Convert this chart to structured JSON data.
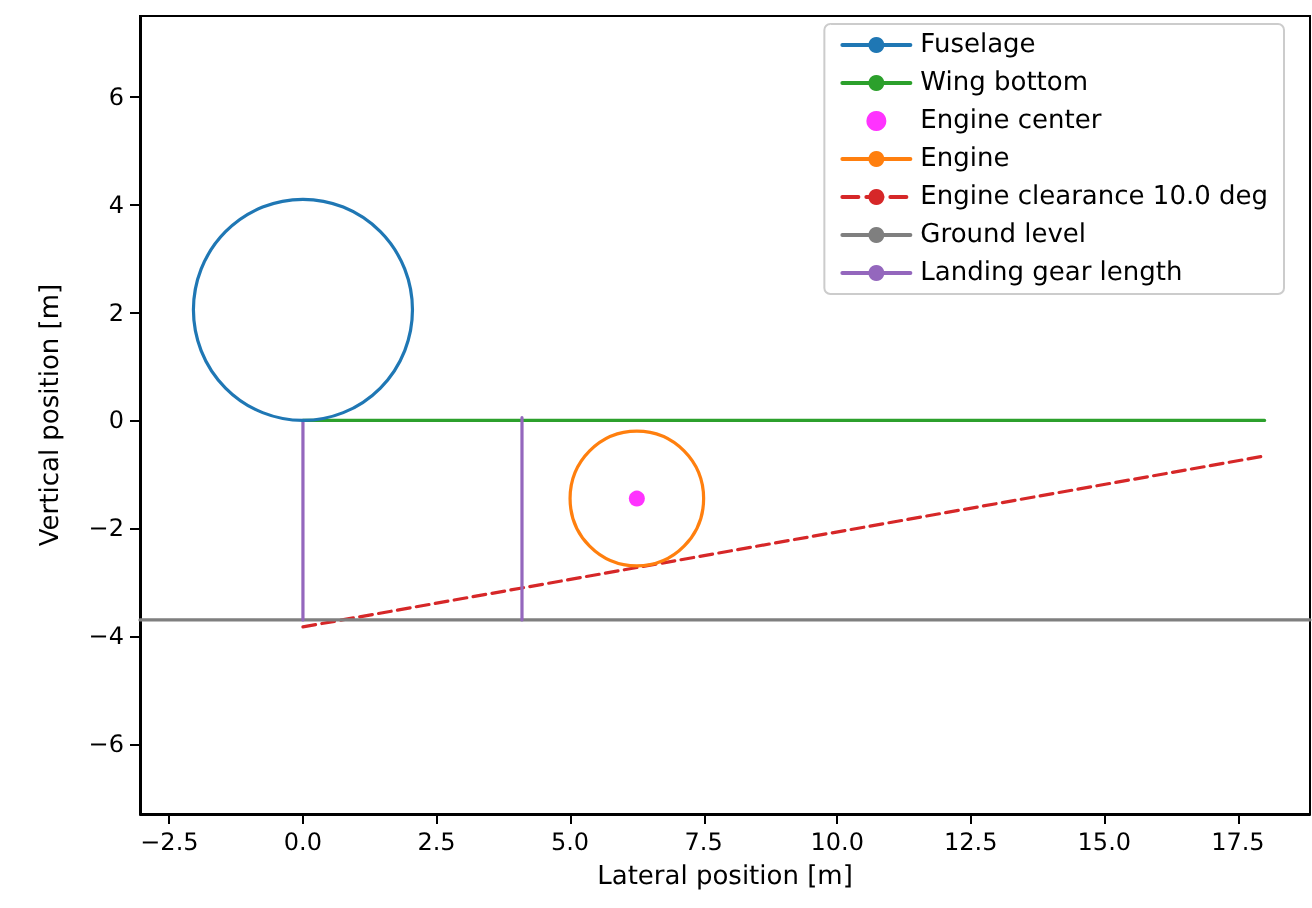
{
  "chart_data": {
    "type": "line",
    "xlabel": "Lateral position [m]",
    "ylabel": "Vertical position [m]",
    "xlim": [
      -3.05,
      18.85
    ],
    "ylim": [
      -7.3,
      7.5
    ],
    "xticks": [
      {
        "value": -2.5,
        "label": "−2.5"
      },
      {
        "value": 0,
        "label": "0.0"
      },
      {
        "value": 2.5,
        "label": "2.5"
      },
      {
        "value": 5,
        "label": "5.0"
      },
      {
        "value": 7.5,
        "label": "7.5"
      },
      {
        "value": 10,
        "label": "10.0"
      },
      {
        "value": 12.5,
        "label": "12.5"
      },
      {
        "value": 15,
        "label": "15.0"
      },
      {
        "value": 17.5,
        "label": "17.5"
      }
    ],
    "yticks": [
      {
        "value": -6,
        "label": "−6"
      },
      {
        "value": -4,
        "label": "−4"
      },
      {
        "value": -2,
        "label": "−2"
      },
      0,
      2,
      4,
      6
    ],
    "grid": false,
    "legend": "top right",
    "marker": "none",
    "line_style": "solid",
    "series": [
      {
        "name": "Fuselage",
        "color": "#1f77b4"
      },
      {
        "name": "Wing bottom",
        "color": "#2ca02c",
        "x": [
          0,
          18
        ],
        "values": [
          0,
          0
        ]
      },
      {
        "name": "Engine center",
        "type": "scatter",
        "marker": "circle",
        "color": "#ff00ff",
        "x": [
          6.25
        ],
        "values": [
          -1.45
        ]
      },
      {
        "name": "Engine",
        "color": "#ff7f0e"
      },
      {
        "name": "Engine clearance 10.0 deg",
        "color": "#d62728",
        "line_style": "dashed",
        "x": [
          0,
          18
        ],
        "values": [
          -3.83,
          -0.66
        ]
      },
      {
        "name": "Ground level",
        "color": "#7f7f7f",
        "x": [
          -3.05,
          18.85
        ],
        "values": [
          -3.7,
          -3.7
        ]
      },
      {
        "name": "Landing gear length",
        "color": "#9467bd",
        "x": [
          0,
          0,
          null,
          4.1,
          4.1
        ],
        "values": [
          0,
          -3.7,
          null,
          0.05,
          -3.7
        ]
      }
    ]
  }
}
